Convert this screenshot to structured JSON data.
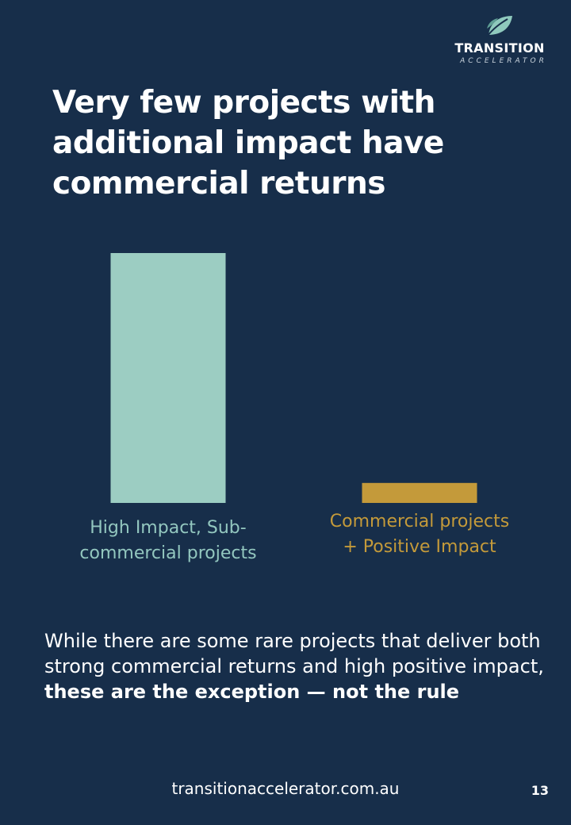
{
  "logo": {
    "brand": "TRANSITION",
    "sub": "ACCELERATOR"
  },
  "title": "Very few projects with additional impact have commercial returns",
  "chart_data": {
    "type": "bar",
    "categories": [
      "High Impact, Sub-commercial projects",
      "Commercial projects + Positive Impact"
    ],
    "values": [
      100,
      8
    ],
    "ylim": [
      0,
      100
    ],
    "colors": [
      "#9ccdc2",
      "#c49a3a"
    ],
    "label_colors": [
      "#93c7bf",
      "#c49a3a"
    ],
    "grid": false,
    "axes_visible": false,
    "note": ""
  },
  "body": {
    "text_plain": "While there are some rare projects that deliver both strong commercial returns and high positive impact, ",
    "text_bold": "these are the exception — not the rule"
  },
  "footer": {
    "url": "transitionaccelerator.com.au",
    "page_number": "13"
  },
  "colors": {
    "background": "#172e4a",
    "text": "#ffffff"
  }
}
